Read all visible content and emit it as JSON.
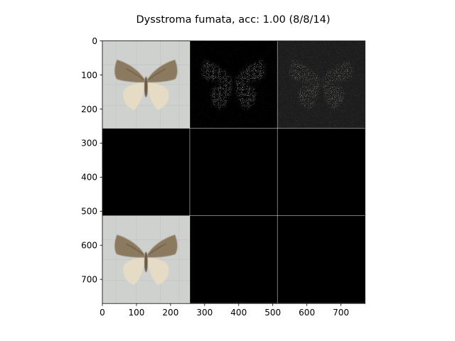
{
  "chart_data": {
    "type": "heatmap",
    "title": "Dysstroma fumata, acc: 1.00 (8/8/14)",
    "xlabel": "",
    "ylabel": "",
    "grid": false,
    "xlim": [
      0,
      771
    ],
    "ylim": [
      771,
      0
    ],
    "x_ticks": [
      0,
      100,
      200,
      300,
      400,
      500,
      600,
      700
    ],
    "y_ticks": [
      0,
      100,
      200,
      300,
      400,
      500,
      600,
      700
    ],
    "x_tick_labels": [
      "0",
      "100",
      "200",
      "300",
      "400",
      "500",
      "600",
      "700"
    ],
    "y_tick_labels": [
      "0",
      "100",
      "200",
      "300",
      "400",
      "500",
      "600",
      "700"
    ],
    "grid_layout": {
      "rows": 3,
      "cols": 3,
      "tile_size": 256,
      "separator": 1
    },
    "tiles": [
      {
        "row": 0,
        "col": 0,
        "content": "moth-photo"
      },
      {
        "row": 0,
        "col": 1,
        "content": "noisy-moth-map"
      },
      {
        "row": 0,
        "col": 2,
        "content": "faint-moth-map"
      },
      {
        "row": 1,
        "col": 0,
        "content": "black"
      },
      {
        "row": 1,
        "col": 1,
        "content": "black"
      },
      {
        "row": 1,
        "col": 2,
        "content": "black"
      },
      {
        "row": 2,
        "col": 0,
        "content": "moth-photo"
      },
      {
        "row": 2,
        "col": 1,
        "content": "black"
      },
      {
        "row": 2,
        "col": 2,
        "content": "black"
      }
    ],
    "colors": {
      "separator": "#ffffff",
      "black_tile": "#000000",
      "photo_background": "#cfd1cf",
      "moth_wing": "#8c7a60",
      "moth_hindwing": "#e6dcc6",
      "faint_map_background": "#1c1c1c"
    }
  }
}
